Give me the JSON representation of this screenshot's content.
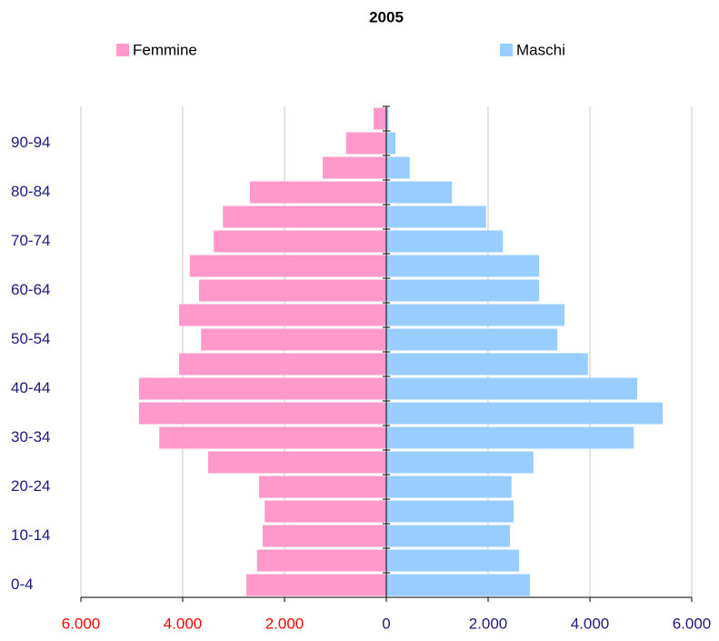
{
  "chart_data": {
    "type": "pyramid",
    "title": "2005",
    "categories": [
      "0-4",
      null,
      "10-14",
      null,
      "20-24",
      null,
      "30-34",
      null,
      "40-44",
      null,
      "50-54",
      null,
      "60-64",
      null,
      "70-74",
      null,
      "80-84",
      null,
      "90-94",
      null
    ],
    "series": [
      {
        "name": "Femmine",
        "color": "#ff99cc",
        "values": [
          -2750,
          -2540,
          -2430,
          -2390,
          -2500,
          -3500,
          -4460,
          -4860,
          -4860,
          -4070,
          -3640,
          -4070,
          -3680,
          -3860,
          -3390,
          -3210,
          -2680,
          -1250,
          -790,
          -250
        ]
      },
      {
        "name": "Maschi",
        "color": "#99ccff",
        "values": [
          2820,
          2610,
          2430,
          2500,
          2460,
          2890,
          4860,
          5430,
          4930,
          3960,
          3360,
          3500,
          3000,
          3000,
          2290,
          1960,
          1290,
          460,
          180,
          40
        ]
      }
    ],
    "xlim": [
      -6000,
      6000
    ],
    "xticks": [
      {
        "value": -6000,
        "label": "6.000"
      },
      {
        "value": -4000,
        "label": "4.000"
      },
      {
        "value": -2000,
        "label": "2.000"
      },
      0,
      {
        "value": 2000,
        "label": "2.000"
      },
      {
        "value": 4000,
        "label": "4.000"
      },
      {
        "value": 6000,
        "label": "6.000"
      }
    ],
    "grid": true
  }
}
